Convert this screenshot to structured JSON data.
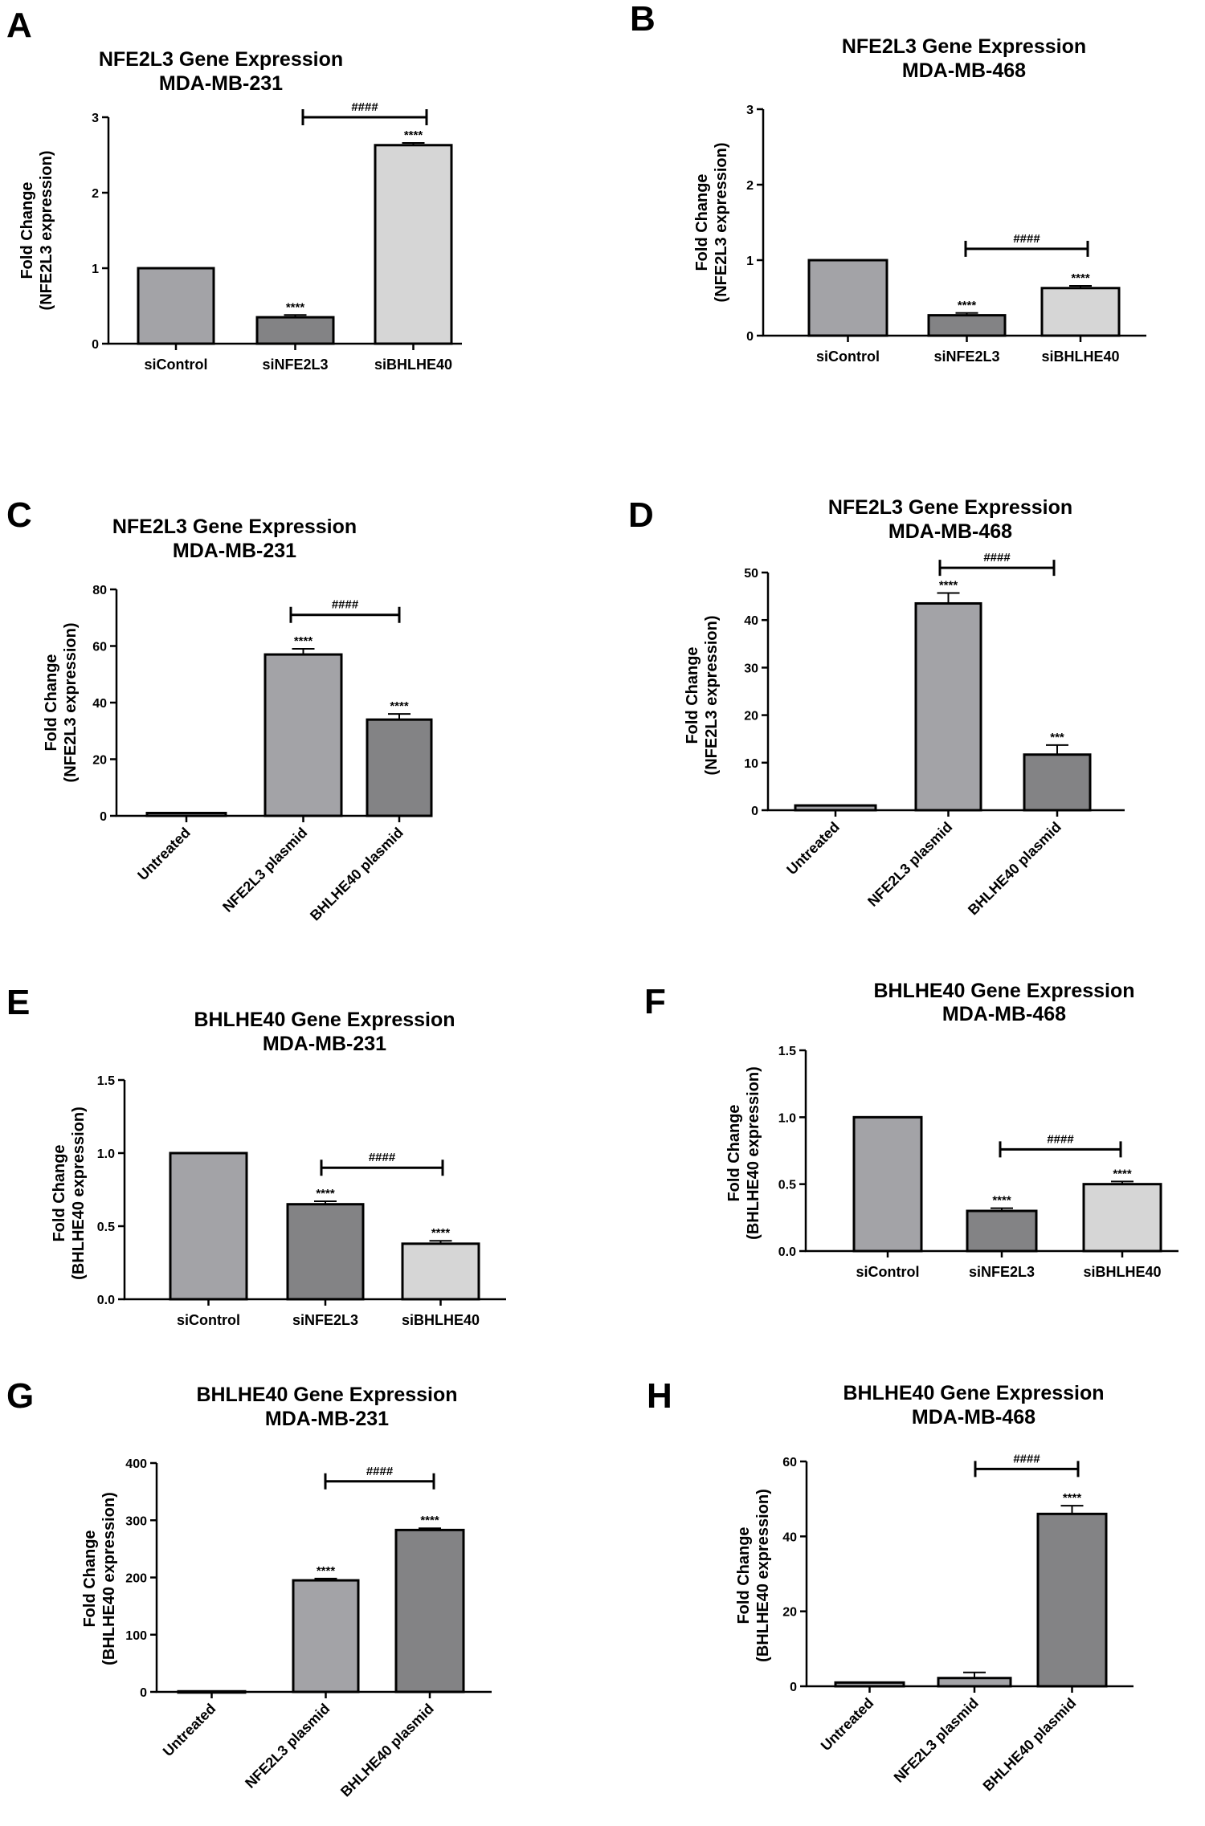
{
  "colors": {
    "light_gray": "#d6d6d6",
    "mid_gray": "#a3a3a7",
    "dark_gray": "#838385",
    "outline": "#000000"
  },
  "chart_data": [
    {
      "panel": "A",
      "type": "bar",
      "title": [
        "NFE2L3 Gene Expression",
        "MDA-MB-231"
      ],
      "ylabel": [
        "Fold Change",
        "(NFE2L3 expression)"
      ],
      "categories": [
        "siControl",
        "siNFE2L3",
        "siBHLHE40"
      ],
      "values": [
        1.0,
        0.35,
        2.63
      ],
      "errors": [
        0,
        0.03,
        0.03
      ],
      "bar_colors": [
        "mid_gray",
        "dark_gray",
        "light_gray"
      ],
      "sig": [
        "",
        "****",
        "****"
      ],
      "ylim": [
        0,
        3
      ],
      "yticks": [
        0,
        1,
        2,
        3
      ],
      "tick_labels": [
        "0",
        "1",
        "2",
        "3"
      ],
      "bracket": {
        "from": 1,
        "to": 2,
        "label": "####",
        "y": 3.0
      },
      "rotate_labels": false
    },
    {
      "panel": "B",
      "type": "bar",
      "title": [
        "NFE2L3 Gene Expression",
        "MDA-MB-468"
      ],
      "ylabel": [
        "Fold Change",
        "(NFE2L3 expression)"
      ],
      "categories": [
        "siControl",
        "siNFE2L3",
        "siBHLHE40"
      ],
      "values": [
        1.0,
        0.27,
        0.63
      ],
      "errors": [
        0,
        0.03,
        0.03
      ],
      "bar_colors": [
        "mid_gray",
        "dark_gray",
        "light_gray"
      ],
      "sig": [
        "",
        "****",
        "****"
      ],
      "ylim": [
        0,
        3
      ],
      "yticks": [
        0,
        1,
        2,
        3
      ],
      "tick_labels": [
        "0",
        "1",
        "2",
        "3"
      ],
      "bracket": {
        "from": 1,
        "to": 2,
        "label": "####",
        "y": 1.15
      },
      "rotate_labels": false
    },
    {
      "panel": "C",
      "type": "bar",
      "title": [
        "NFE2L3 Gene Expression",
        "MDA-MB-231"
      ],
      "ylabel": [
        "Fold Change",
        "(NFE2L3 expression)"
      ],
      "categories": [
        "Untreated",
        "NFE2L3 plasmid",
        "BHLHE40 plasmid"
      ],
      "values": [
        1,
        57,
        34
      ],
      "errors": [
        0,
        2,
        2
      ],
      "bar_colors": [
        "mid_gray",
        "mid_gray",
        "dark_gray"
      ],
      "sig": [
        "",
        "****",
        "****"
      ],
      "ylim": [
        0,
        80
      ],
      "yticks": [
        0,
        20,
        40,
        60,
        80
      ],
      "tick_labels": [
        "0",
        "20",
        "40",
        "60",
        "80"
      ],
      "bracket": {
        "from": 1,
        "to": 2,
        "label": "####",
        "y": 71
      },
      "rotate_labels": true
    },
    {
      "panel": "D",
      "type": "bar",
      "title": [
        "NFE2L3 Gene Expression",
        "MDA-MB-468"
      ],
      "ylabel": [
        "Fold Change",
        "(NFE2L3 expression)"
      ],
      "categories": [
        "Untreated",
        "NFE2L3 plasmid",
        "BHLHE40 plasmid"
      ],
      "values": [
        1,
        43.5,
        11.7
      ],
      "errors": [
        0,
        2.2,
        2.0
      ],
      "bar_colors": [
        "mid_gray",
        "mid_gray",
        "dark_gray"
      ],
      "sig": [
        "",
        "****",
        "***"
      ],
      "ylim": [
        0,
        50
      ],
      "yticks": [
        0,
        10,
        20,
        30,
        40,
        50
      ],
      "tick_labels": [
        "0",
        "10",
        "20",
        "30",
        "40",
        "50"
      ],
      "bracket": {
        "from": 1,
        "to": 2,
        "label": "####",
        "y": 51
      },
      "rotate_labels": true
    },
    {
      "panel": "E",
      "type": "bar",
      "title": [
        "BHLHE40 Gene Expression",
        "MDA-MB-231"
      ],
      "ylabel": [
        "Fold Change",
        "(BHLHE40 expression)"
      ],
      "categories": [
        "siControl",
        "siNFE2L3",
        "siBHLHE40"
      ],
      "values": [
        1.0,
        0.65,
        0.38
      ],
      "errors": [
        0,
        0.02,
        0.02
      ],
      "bar_colors": [
        "mid_gray",
        "dark_gray",
        "light_gray"
      ],
      "sig": [
        "",
        "****",
        "****"
      ],
      "ylim": [
        0,
        1.5
      ],
      "yticks": [
        0,
        0.5,
        1.0,
        1.5
      ],
      "tick_labels": [
        "0.0",
        "0.5",
        "1.0",
        "1.5"
      ],
      "bracket": {
        "from": 1,
        "to": 2,
        "label": "####",
        "y": 0.9
      },
      "rotate_labels": false
    },
    {
      "panel": "F",
      "type": "bar",
      "title": [
        "BHLHE40 Gene Expression",
        "MDA-MB-468"
      ],
      "ylabel": [
        "Fold Change",
        "(BHLHE40 expression)"
      ],
      "categories": [
        "siControl",
        "siNFE2L3",
        "siBHLHE40"
      ],
      "values": [
        1.0,
        0.3,
        0.5
      ],
      "errors": [
        0,
        0.02,
        0.02
      ],
      "bar_colors": [
        "mid_gray",
        "dark_gray",
        "light_gray"
      ],
      "sig": [
        "",
        "****",
        "****"
      ],
      "ylim": [
        0,
        1.5
      ],
      "yticks": [
        0,
        0.5,
        1.0,
        1.5
      ],
      "tick_labels": [
        "0.0",
        "0.5",
        "1.0",
        "1.5"
      ],
      "bracket": {
        "from": 1,
        "to": 2,
        "label": "####",
        "y": 0.76
      },
      "rotate_labels": false
    },
    {
      "panel": "G",
      "type": "bar",
      "title": [
        "BHLHE40 Gene Expression",
        "MDA-MB-231"
      ],
      "ylabel": [
        "Fold Change",
        "(BHLHE40 expression)"
      ],
      "categories": [
        "Untreated",
        "NFE2L3 plasmid",
        "BHLHE40 plasmid"
      ],
      "values": [
        1,
        195,
        283
      ],
      "errors": [
        0,
        3,
        3
      ],
      "bar_colors": [
        "mid_gray",
        "mid_gray",
        "dark_gray"
      ],
      "sig": [
        "",
        "****",
        "****"
      ],
      "ylim": [
        0,
        400
      ],
      "yticks": [
        0,
        100,
        200,
        300,
        400
      ],
      "tick_labels": [
        "0",
        "100",
        "200",
        "300",
        "400"
      ],
      "bracket": {
        "from": 1,
        "to": 2,
        "label": "####",
        "y": 368
      },
      "rotate_labels": true
    },
    {
      "panel": "H",
      "type": "bar",
      "title": [
        "BHLHE40 Gene Expression",
        "MDA-MB-468"
      ],
      "ylabel": [
        "Fold Change",
        "(BHLHE40 expression)"
      ],
      "categories": [
        "Untreated",
        "NFE2L3 plasmid",
        "BHLHE40 plasmid"
      ],
      "values": [
        1,
        2.2,
        46
      ],
      "errors": [
        0,
        1.5,
        2.2
      ],
      "bar_colors": [
        "mid_gray",
        "mid_gray",
        "dark_gray"
      ],
      "sig": [
        "",
        "",
        "****"
      ],
      "ylim": [
        0,
        60
      ],
      "yticks": [
        0,
        20,
        40,
        60
      ],
      "tick_labels": [
        "0",
        "20",
        "40",
        "60"
      ],
      "bracket": {
        "from": 1,
        "to": 2,
        "label": "####",
        "y": 58
      },
      "rotate_labels": true
    }
  ]
}
